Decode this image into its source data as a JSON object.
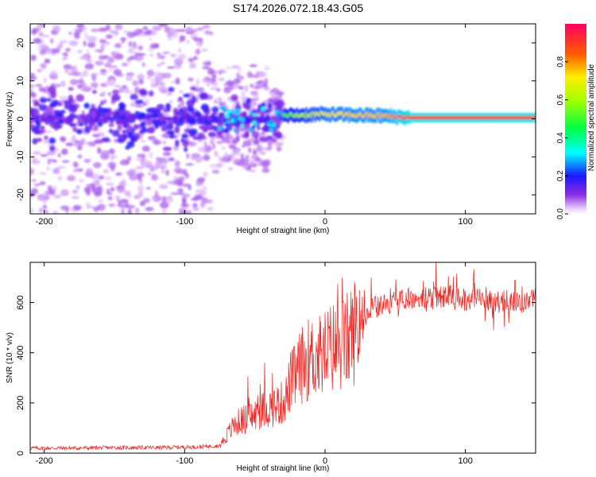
{
  "title": "S174.2026.072.18.43.G05",
  "chart_data": [
    {
      "type": "heatmap",
      "xlabel": "Height of straight line (km)",
      "ylabel": "Frequency (Hz)",
      "xlim": [
        -210,
        150
      ],
      "ylim": [
        -25,
        25
      ],
      "xticks": [
        -200,
        -100,
        0,
        100
      ],
      "yticks": [
        -20,
        -10,
        0,
        10,
        20
      ],
      "colorbar": {
        "label": "Normalized spectral amplitude",
        "range": [
          0,
          1
        ],
        "ticks": [
          "0.0",
          "0.2",
          "0.4",
          "0.6",
          "0.8"
        ]
      },
      "description_series": {
        "x": [
          -210,
          -100,
          -80,
          -40,
          -30,
          -20,
          0,
          20,
          40,
          60,
          90,
          100,
          150
        ],
        "peak_frequency": [
          1.0,
          1.0,
          1.0,
          -1.0,
          0.8,
          1.0,
          1.2,
          1.0,
          0.8,
          0.3,
          0.3,
          0.3,
          0.3
        ],
        "peak_amplitude": [
          0.15,
          0.18,
          0.25,
          0.3,
          0.5,
          0.6,
          0.7,
          0.75,
          0.75,
          0.9,
          0.9,
          0.9,
          0.9
        ]
      }
    },
    {
      "type": "line",
      "xlabel": "Height of straight line (km)",
      "ylabel": "SNR (10 * v/v)",
      "xlim": [
        -210,
        150
      ],
      "ylim": [
        0,
        760
      ],
      "xticks": [
        -200,
        -100,
        0,
        100
      ],
      "yticks": [
        0,
        200,
        400,
        600
      ],
      "series": [
        {
          "name": "SNR",
          "color": "#e8221e",
          "x": [
            -210,
            -180,
            -150,
            -120,
            -90,
            -75,
            -70,
            -65,
            -60,
            -55,
            -50,
            -45,
            -40,
            -35,
            -30,
            -27,
            -25,
            -22,
            -20,
            -15,
            -10,
            -5,
            0,
            5,
            10,
            15,
            20,
            25,
            30,
            35,
            40,
            50,
            60,
            70,
            80,
            90,
            100,
            110,
            120,
            130,
            140,
            150
          ],
          "y": [
            20,
            20,
            22,
            22,
            25,
            30,
            70,
            110,
            130,
            140,
            150,
            170,
            180,
            190,
            200,
            230,
            280,
            300,
            320,
            360,
            380,
            380,
            400,
            420,
            430,
            440,
            480,
            530,
            560,
            580,
            590,
            600,
            620,
            610,
            620,
            630,
            610,
            620,
            600,
            610,
            590,
            620
          ]
        }
      ]
    }
  ]
}
